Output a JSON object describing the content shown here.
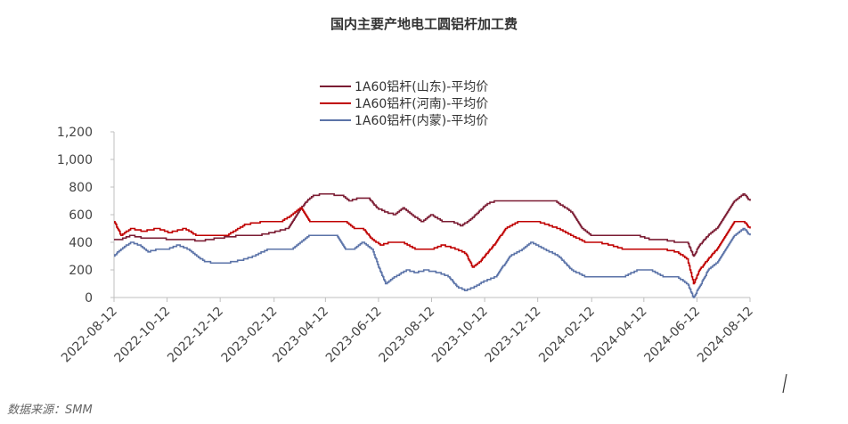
{
  "source_text": "数据来源：SMM",
  "chart_data": {
    "type": "line",
    "title": "国内主要产地电工圆铝杆加工费",
    "xlabel": "",
    "ylabel": "",
    "ylim": [
      0,
      1200
    ],
    "yticks": [
      0,
      200,
      400,
      600,
      800,
      1000,
      1200
    ],
    "ytick_labels": [
      "0",
      "200",
      "400",
      "600",
      "800",
      "1,000",
      "1,200"
    ],
    "x_range": [
      "2022-08-12",
      "2024-08-12"
    ],
    "x_ticks": [
      "2022-08-12",
      "2022-10-12",
      "2022-12-12",
      "2023-02-12",
      "2023-04-12",
      "2023-06-12",
      "2023-08-12",
      "2023-10-12",
      "2023-12-12",
      "2024-02-12",
      "2024-04-12",
      "2024-06-12",
      "2024-08-12"
    ],
    "legend_position": "top-center",
    "grid": false,
    "series": [
      {
        "name": "1A60铝杆(山东)-平均价",
        "color": "#7b1c33",
        "points": [
          [
            "2022-08-12",
            420
          ],
          [
            "2022-08-20",
            420
          ],
          [
            "2022-09-01",
            450
          ],
          [
            "2022-09-15",
            430
          ],
          [
            "2022-10-01",
            430
          ],
          [
            "2022-10-20",
            420
          ],
          [
            "2022-11-05",
            420
          ],
          [
            "2022-11-20",
            410
          ],
          [
            "2022-12-10",
            430
          ],
          [
            "2023-01-05",
            450
          ],
          [
            "2023-01-25",
            450
          ],
          [
            "2023-02-10",
            470
          ],
          [
            "2023-02-28",
            500
          ],
          [
            "2023-03-08",
            580
          ],
          [
            "2023-03-15",
            650
          ],
          [
            "2023-03-22",
            700
          ],
          [
            "2023-03-29",
            740
          ],
          [
            "2023-04-12",
            750
          ],
          [
            "2023-05-01",
            740
          ],
          [
            "2023-05-10",
            700
          ],
          [
            "2023-05-20",
            720
          ],
          [
            "2023-06-01",
            720
          ],
          [
            "2023-06-10",
            650
          ],
          [
            "2023-06-20",
            620
          ],
          [
            "2023-07-01",
            600
          ],
          [
            "2023-07-10",
            650
          ],
          [
            "2023-07-20",
            600
          ],
          [
            "2023-08-01",
            550
          ],
          [
            "2023-08-12",
            600
          ],
          [
            "2023-08-25",
            550
          ],
          [
            "2023-09-05",
            550
          ],
          [
            "2023-09-15",
            520
          ],
          [
            "2023-09-25",
            560
          ],
          [
            "2023-10-05",
            620
          ],
          [
            "2023-10-15",
            680
          ],
          [
            "2023-10-25",
            700
          ],
          [
            "2023-11-15",
            700
          ],
          [
            "2023-12-12",
            700
          ],
          [
            "2024-01-01",
            700
          ],
          [
            "2024-01-20",
            620
          ],
          [
            "2024-02-01",
            500
          ],
          [
            "2024-02-12",
            450
          ],
          [
            "2024-03-01",
            450
          ],
          [
            "2024-03-20",
            450
          ],
          [
            "2024-04-05",
            450
          ],
          [
            "2024-04-20",
            420
          ],
          [
            "2024-05-05",
            420
          ],
          [
            "2024-05-20",
            400
          ],
          [
            "2024-06-01",
            400
          ],
          [
            "2024-06-08",
            300
          ],
          [
            "2024-06-15",
            380
          ],
          [
            "2024-06-25",
            450
          ],
          [
            "2024-07-05",
            500
          ],
          [
            "2024-07-15",
            600
          ],
          [
            "2024-07-25",
            700
          ],
          [
            "2024-08-05",
            750
          ],
          [
            "2024-08-12",
            700
          ]
        ]
      },
      {
        "name": "1A60铝杆(河南)-平均价",
        "color": "#c00000",
        "points": [
          [
            "2022-08-12",
            550
          ],
          [
            "2022-08-20",
            450
          ],
          [
            "2022-09-01",
            500
          ],
          [
            "2022-09-15",
            480
          ],
          [
            "2022-10-01",
            500
          ],
          [
            "2022-10-15",
            470
          ],
          [
            "2022-11-01",
            500
          ],
          [
            "2022-11-15",
            450
          ],
          [
            "2022-12-01",
            450
          ],
          [
            "2022-12-20",
            450
          ],
          [
            "2023-01-10",
            530
          ],
          [
            "2023-02-01",
            550
          ],
          [
            "2023-02-20",
            550
          ],
          [
            "2023-03-05",
            600
          ],
          [
            "2023-03-15",
            650
          ],
          [
            "2023-03-25",
            550
          ],
          [
            "2023-04-05",
            550
          ],
          [
            "2023-04-20",
            550
          ],
          [
            "2023-05-05",
            550
          ],
          [
            "2023-05-15",
            500
          ],
          [
            "2023-05-25",
            500
          ],
          [
            "2023-06-05",
            420
          ],
          [
            "2023-06-15",
            380
          ],
          [
            "2023-06-25",
            400
          ],
          [
            "2023-07-10",
            400
          ],
          [
            "2023-07-25",
            350
          ],
          [
            "2023-08-12",
            350
          ],
          [
            "2023-08-25",
            380
          ],
          [
            "2023-09-10",
            350
          ],
          [
            "2023-09-20",
            320
          ],
          [
            "2023-09-28",
            220
          ],
          [
            "2023-10-05",
            250
          ],
          [
            "2023-10-12",
            300
          ],
          [
            "2023-10-25",
            400
          ],
          [
            "2023-11-05",
            500
          ],
          [
            "2023-11-20",
            550
          ],
          [
            "2023-12-12",
            550
          ],
          [
            "2024-01-05",
            500
          ],
          [
            "2024-01-20",
            450
          ],
          [
            "2024-02-05",
            400
          ],
          [
            "2024-02-20",
            400
          ],
          [
            "2024-03-05",
            380
          ],
          [
            "2024-03-20",
            350
          ],
          [
            "2024-04-05",
            350
          ],
          [
            "2024-04-20",
            350
          ],
          [
            "2024-05-05",
            350
          ],
          [
            "2024-05-20",
            330
          ],
          [
            "2024-06-01",
            280
          ],
          [
            "2024-06-08",
            100
          ],
          [
            "2024-06-15",
            200
          ],
          [
            "2024-06-25",
            280
          ],
          [
            "2024-07-05",
            350
          ],
          [
            "2024-07-15",
            450
          ],
          [
            "2024-07-25",
            550
          ],
          [
            "2024-08-05",
            550
          ],
          [
            "2024-08-12",
            500
          ]
        ]
      },
      {
        "name": "1A60铝杆(内蒙)-平均价",
        "color": "#5b73a8",
        "points": [
          [
            "2022-08-12",
            300
          ],
          [
            "2022-08-20",
            350
          ],
          [
            "2022-09-01",
            400
          ],
          [
            "2022-09-10",
            380
          ],
          [
            "2022-09-20",
            330
          ],
          [
            "2022-10-01",
            350
          ],
          [
            "2022-10-12",
            350
          ],
          [
            "2022-10-25",
            380
          ],
          [
            "2022-11-05",
            350
          ],
          [
            "2022-11-15",
            300
          ],
          [
            "2022-11-25",
            260
          ],
          [
            "2022-12-05",
            250
          ],
          [
            "2022-12-20",
            250
          ],
          [
            "2023-01-05",
            270
          ],
          [
            "2023-01-20",
            300
          ],
          [
            "2023-02-05",
            350
          ],
          [
            "2023-02-20",
            350
          ],
          [
            "2023-03-05",
            350
          ],
          [
            "2023-03-15",
            400
          ],
          [
            "2023-03-25",
            450
          ],
          [
            "2023-04-12",
            450
          ],
          [
            "2023-04-25",
            450
          ],
          [
            "2023-05-05",
            350
          ],
          [
            "2023-05-15",
            350
          ],
          [
            "2023-05-25",
            400
          ],
          [
            "2023-06-05",
            350
          ],
          [
            "2023-06-12",
            220
          ],
          [
            "2023-06-20",
            100
          ],
          [
            "2023-07-01",
            150
          ],
          [
            "2023-07-15",
            200
          ],
          [
            "2023-07-25",
            180
          ],
          [
            "2023-08-05",
            200
          ],
          [
            "2023-08-20",
            180
          ],
          [
            "2023-09-01",
            150
          ],
          [
            "2023-09-10",
            80
          ],
          [
            "2023-09-20",
            50
          ],
          [
            "2023-10-01",
            80
          ],
          [
            "2023-10-12",
            120
          ],
          [
            "2023-10-25",
            150
          ],
          [
            "2023-11-10",
            300
          ],
          [
            "2023-11-25",
            350
          ],
          [
            "2023-12-05",
            400
          ],
          [
            "2023-12-20",
            350
          ],
          [
            "2024-01-05",
            300
          ],
          [
            "2024-01-20",
            200
          ],
          [
            "2024-02-05",
            150
          ],
          [
            "2024-02-20",
            150
          ],
          [
            "2024-03-05",
            150
          ],
          [
            "2024-03-20",
            150
          ],
          [
            "2024-04-05",
            200
          ],
          [
            "2024-04-20",
            200
          ],
          [
            "2024-05-05",
            150
          ],
          [
            "2024-05-20",
            150
          ],
          [
            "2024-06-01",
            100
          ],
          [
            "2024-06-08",
            0
          ],
          [
            "2024-06-15",
            80
          ],
          [
            "2024-06-25",
            200
          ],
          [
            "2024-07-05",
            250
          ],
          [
            "2024-07-15",
            350
          ],
          [
            "2024-07-25",
            450
          ],
          [
            "2024-08-05",
            500
          ],
          [
            "2024-08-12",
            450
          ]
        ]
      }
    ]
  }
}
